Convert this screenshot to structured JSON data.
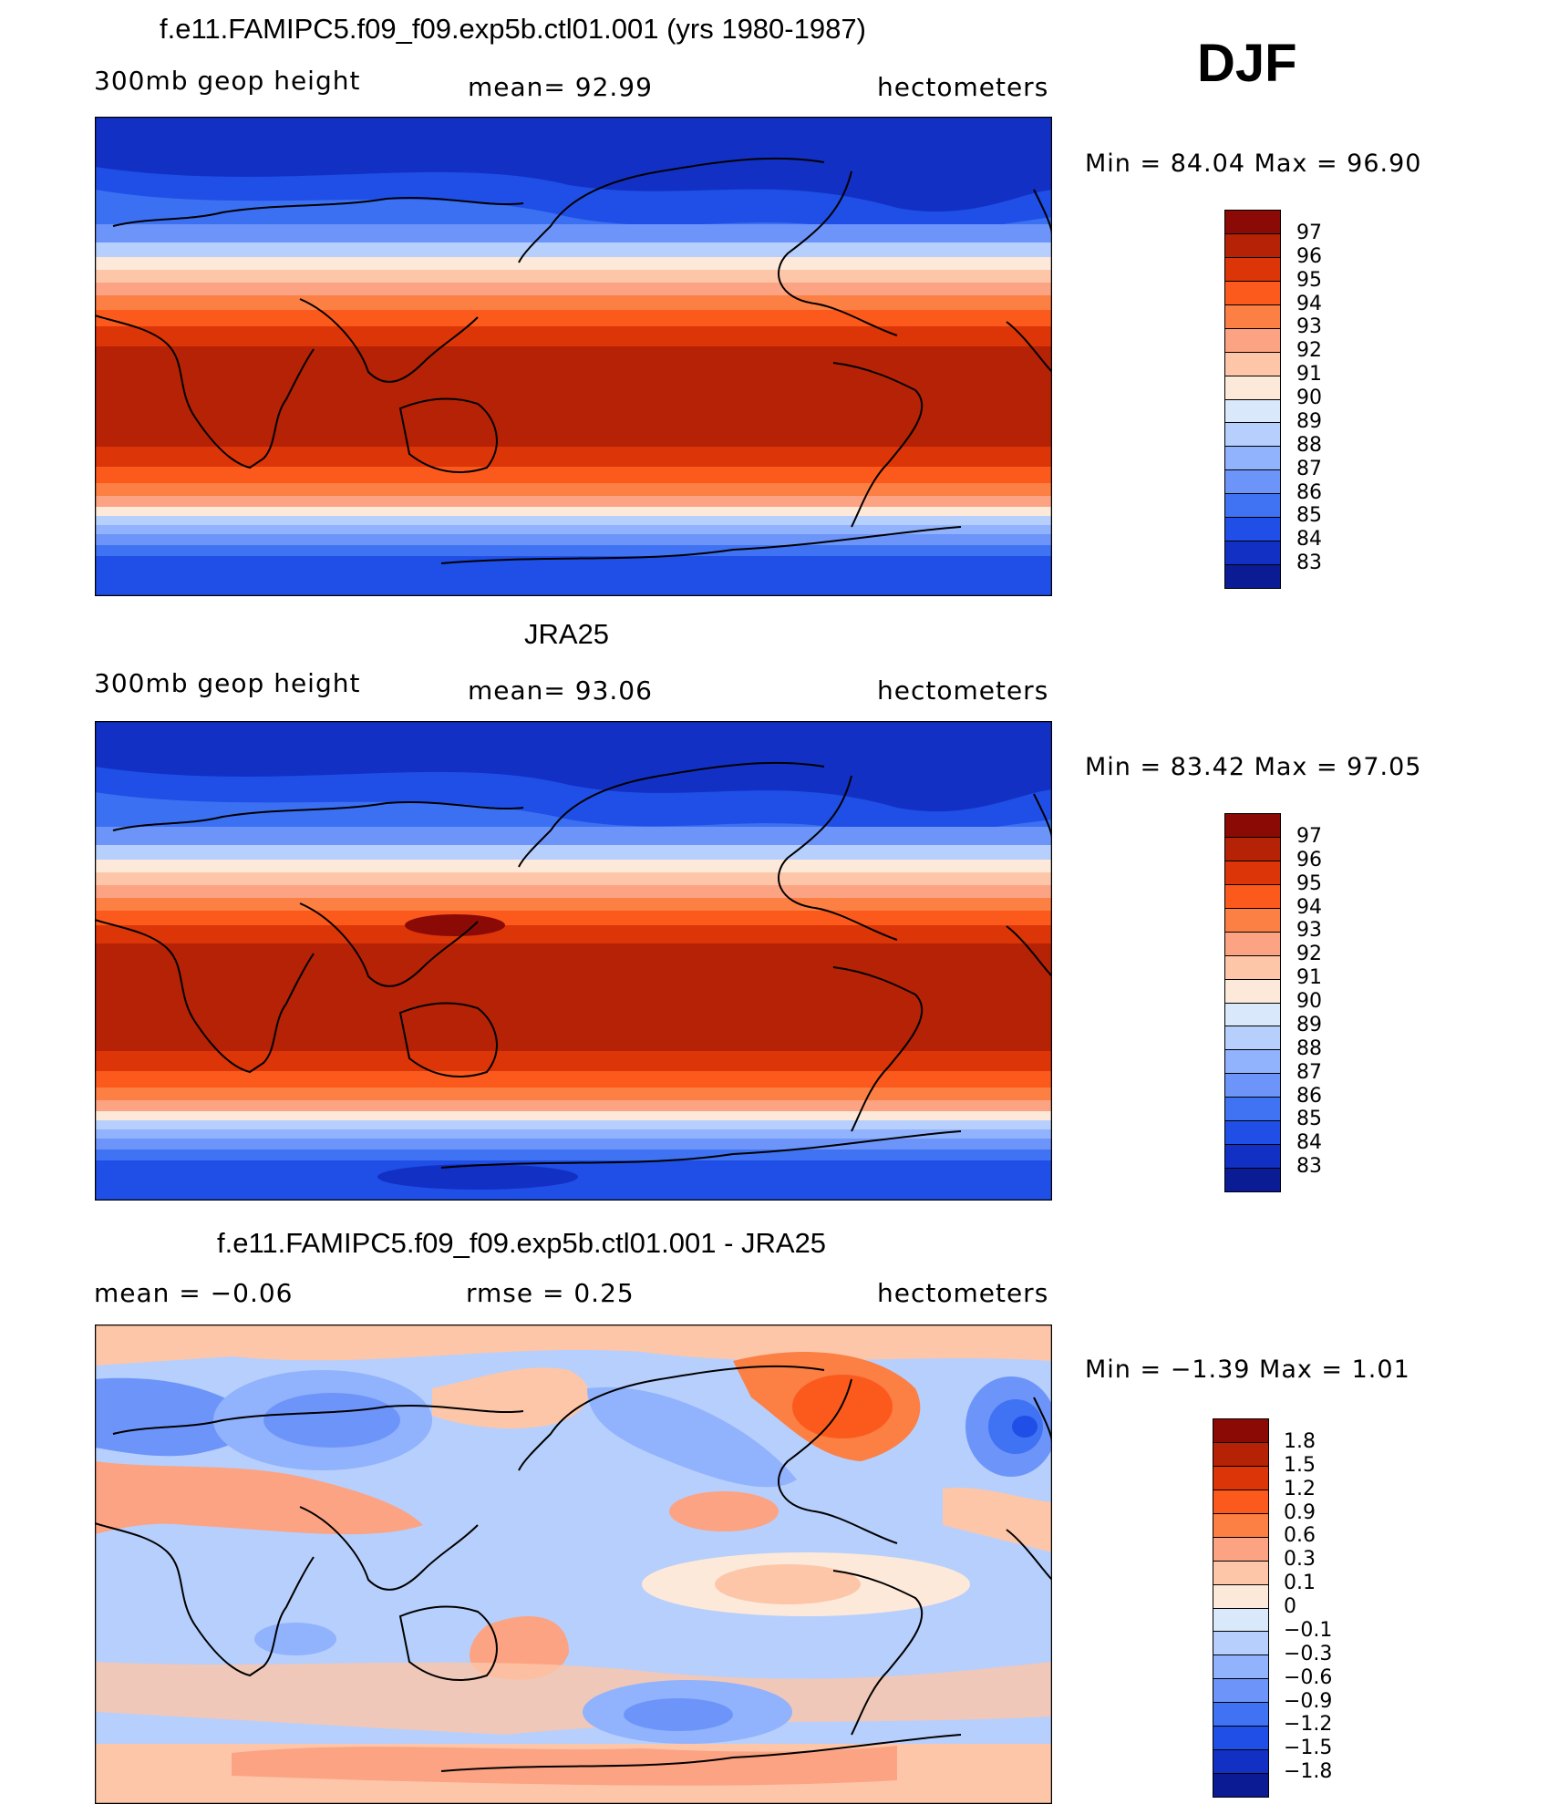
{
  "season": "DJF",
  "panels": [
    {
      "title": "f.e11.FAMIPC5.f09_f09.exp5b.ctl01.001 (yrs 1980-1987)",
      "left_label": "300mb  geop  height",
      "center_label": "mean=   92.99",
      "right_label": "hectometers",
      "minmax": "Min  =    84.04  Max  =    96.90",
      "colorbar": [
        "97",
        "96",
        "95",
        "94",
        "93",
        "92",
        "91",
        "90",
        "89",
        "88",
        "87",
        "86",
        "85",
        "84",
        "83"
      ],
      "colors": [
        "#8b0a05",
        "#b52206",
        "#dc3508",
        "#fb5a1c",
        "#fc7f43",
        "#fca383",
        "#fdc6a9",
        "#fde9d9",
        "#d9e9fb",
        "#b7cffc",
        "#91b2fc",
        "#6d95f9",
        "#3f73f4",
        "#1f4fe6",
        "#1230c4",
        "#0b1b94"
      ]
    },
    {
      "title": "JRA25",
      "left_label": "300mb  geop  height",
      "center_label": "mean=   93.06",
      "right_label": "hectometers",
      "minmax": "Min  =    83.42  Max  =    97.05",
      "colorbar": [
        "97",
        "96",
        "95",
        "94",
        "93",
        "92",
        "91",
        "90",
        "89",
        "88",
        "87",
        "86",
        "85",
        "84",
        "83"
      ],
      "colors": [
        "#8b0a05",
        "#b52206",
        "#dc3508",
        "#fb5a1c",
        "#fc7f43",
        "#fca383",
        "#fdc6a9",
        "#fde9d9",
        "#d9e9fb",
        "#b7cffc",
        "#91b2fc",
        "#6d95f9",
        "#3f73f4",
        "#1f4fe6",
        "#1230c4",
        "#0b1b94"
      ]
    },
    {
      "title": "f.e11.FAMIPC5.f09_f09.exp5b.ctl01.001 - JRA25",
      "left_label": "mean  =    −0.06",
      "center_label": "rmse  =     0.25",
      "right_label": "hectometers",
      "minmax": "Min  =    −1.39  Max  =      1.01",
      "colorbar": [
        "1.8",
        "1.5",
        "1.2",
        "0.9",
        "0.6",
        "0.3",
        "0.1",
        "0",
        "−0.1",
        "−0.3",
        "−0.6",
        "−0.9",
        "−1.2",
        "−1.5",
        "−1.8"
      ],
      "colors": [
        "#8b0a05",
        "#b52206",
        "#dc3508",
        "#fb5a1c",
        "#fc7f43",
        "#fca383",
        "#fdc6a9",
        "#fde9d9",
        "#d9e9fb",
        "#b7cffc",
        "#91b2fc",
        "#6d95f9",
        "#3f73f4",
        "#1f4fe6",
        "#1230c4",
        "#0b1b94"
      ]
    }
  ]
}
